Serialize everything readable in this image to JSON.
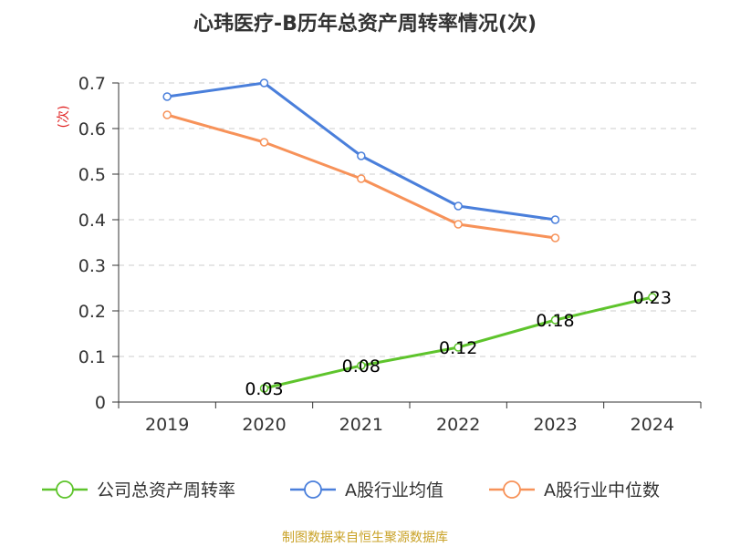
{
  "chart_data": {
    "type": "line",
    "title": "心玮医疗-B历年总资产周转率情况(次)",
    "ylabel": "(次)",
    "xlabel": "",
    "categories": [
      "2019",
      "2020",
      "2021",
      "2022",
      "2023",
      "2024"
    ],
    "ylim": [
      0,
      0.7
    ],
    "yticks": [
      "0",
      "0.1",
      "0.2",
      "0.3",
      "0.4",
      "0.5",
      "0.6",
      "0.7"
    ],
    "grid": true,
    "legend_position": "bottom",
    "series": [
      {
        "name": "公司总资产周转率",
        "color": "#5ec42c",
        "values": [
          null,
          0.03,
          0.08,
          0.12,
          0.18,
          0.23
        ],
        "labels": [
          "",
          "0.03",
          "0.08",
          "0.12",
          "0.18",
          "0.23"
        ]
      },
      {
        "name": "A股行业均值",
        "color": "#4a7fdb",
        "values": [
          0.67,
          0.7,
          0.54,
          0.43,
          0.4,
          null
        ]
      },
      {
        "name": "A股行业中位数",
        "color": "#f79259",
        "values": [
          0.63,
          0.57,
          0.49,
          0.39,
          0.36,
          null
        ]
      }
    ]
  },
  "footer": {
    "source": "制图数据来自恒生聚源数据库"
  }
}
